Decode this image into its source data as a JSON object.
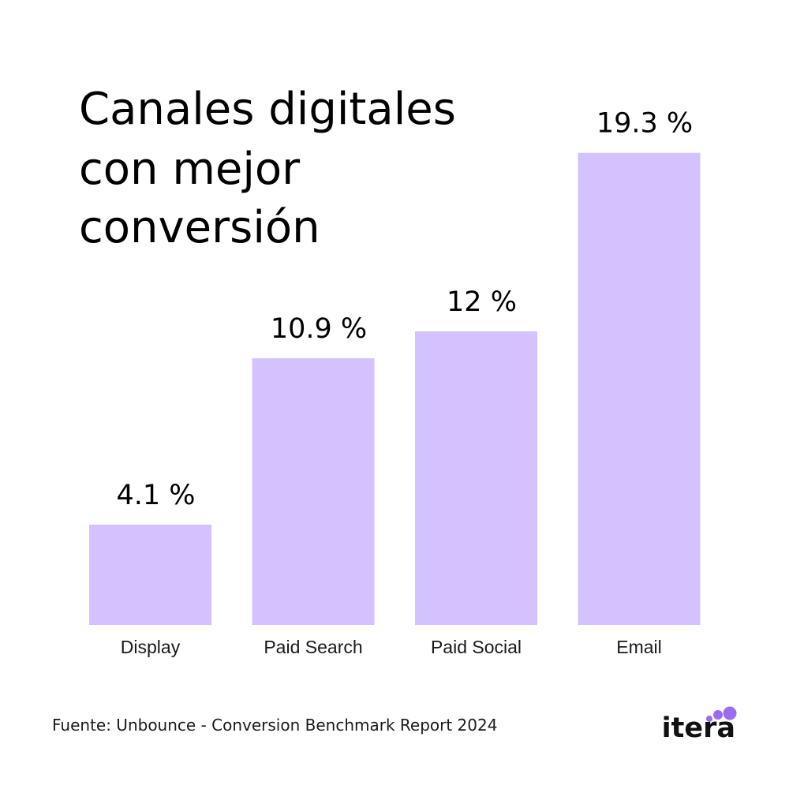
{
  "chart_data": {
    "type": "bar",
    "title_lines": [
      "Canales digitales",
      "con mejor",
      "conversión"
    ],
    "categories": [
      "Display",
      "Paid Search",
      "Paid Social",
      "Email"
    ],
    "values": [
      4.1,
      10.9,
      12,
      19.3
    ],
    "value_labels": [
      "4.1 %",
      "10.9 %",
      "12 %",
      "19.3 %"
    ],
    "xlabel": "",
    "ylabel": "",
    "ylim": [
      0,
      20
    ],
    "grid": false,
    "bar_color": "#d4c2ff"
  },
  "footer": {
    "source": "Fuente: Unbounce - Conversion Benchmark Report 2024"
  },
  "brand": {
    "logo_text": "itera",
    "dot_color": "#9b6bf2"
  }
}
